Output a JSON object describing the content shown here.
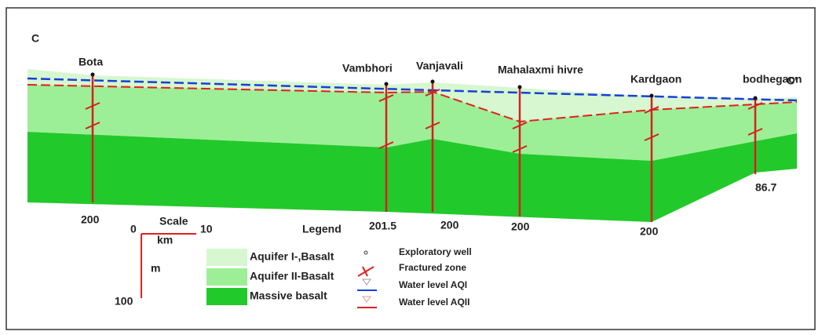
{
  "section": {
    "start_label": "C",
    "end_label": "C'"
  },
  "wells": [
    {
      "name": "Bota",
      "depth": 200
    },
    {
      "name": "Vambhori",
      "depth": 201.5
    },
    {
      "name": "Vanjavali",
      "depth": 200
    },
    {
      "name": "Mahalaxmi hivre",
      "depth": 200
    },
    {
      "name": "Kardgaon",
      "depth": 200
    },
    {
      "name": "bodhegaon",
      "depth": 86.7
    }
  ],
  "scale": {
    "title": "Scale",
    "km_start": 0,
    "km_end": 10,
    "km_unit": "km",
    "m_unit": "m",
    "m_end": 100
  },
  "legend": {
    "title": "Legend",
    "layers": [
      "Aquifer I-,Basalt",
      "Aquifer II-Basalt",
      "Massive basalt"
    ],
    "symbols": [
      "Exploratory well",
      "Fractured zone",
      "Water level AQI",
      "Water level AQII"
    ]
  }
}
